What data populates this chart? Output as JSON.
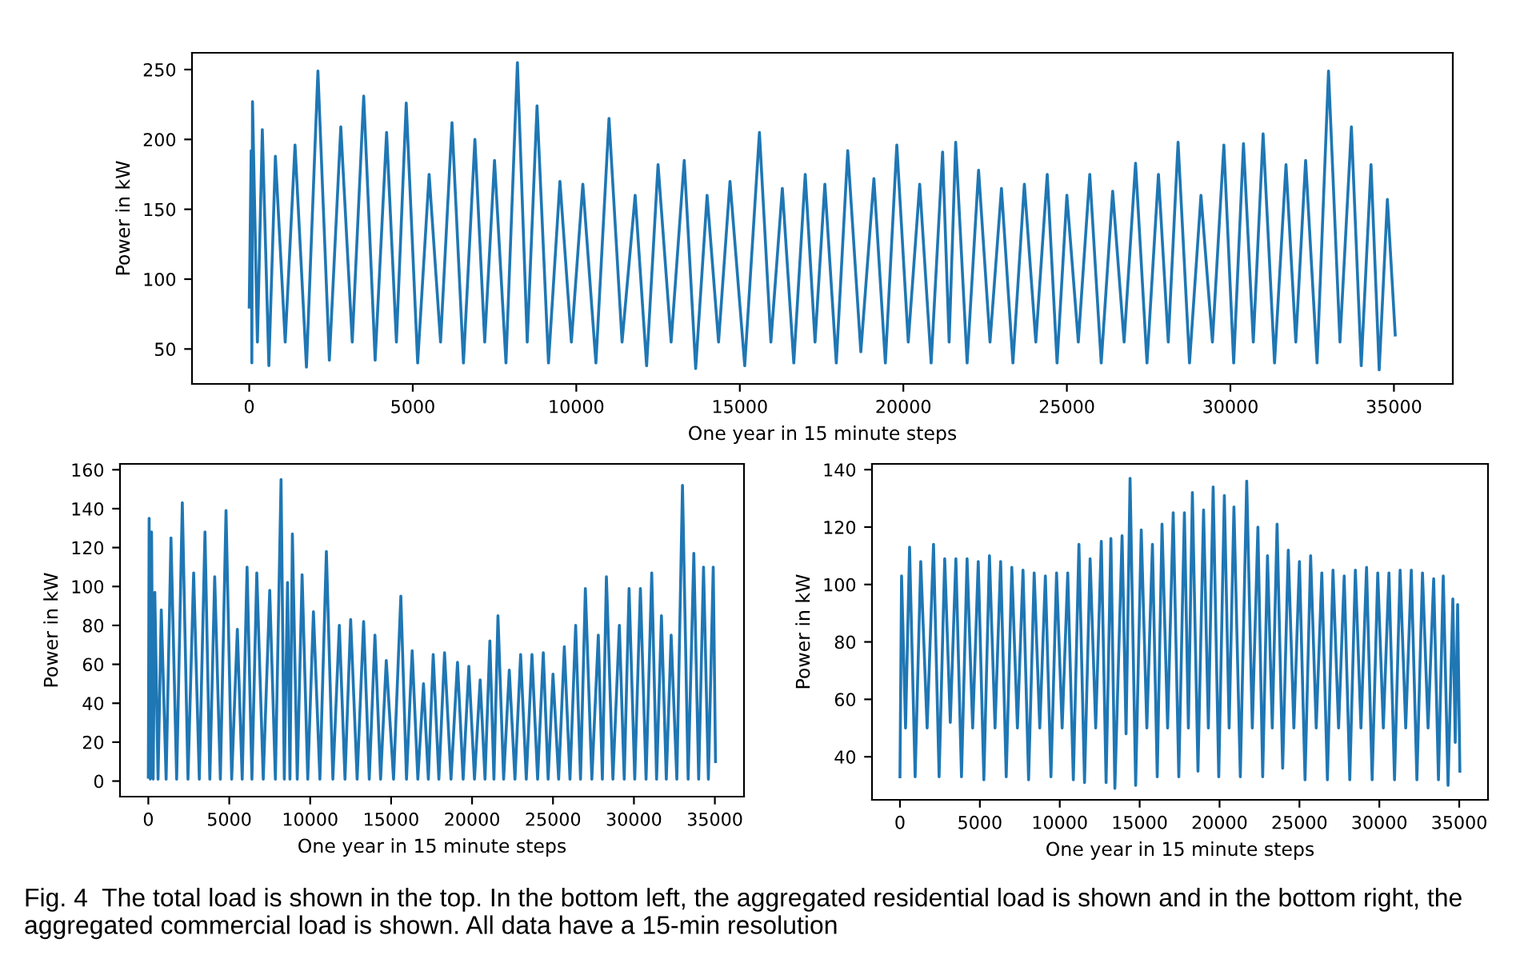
{
  "chart_data": [
    {
      "type": "line",
      "xlabel": "One year in 15 minute steps",
      "ylabel": "Power in kW",
      "xlim": [
        -1750,
        36800
      ],
      "ylim": [
        25,
        262
      ],
      "xticks": [
        0,
        5000,
        10000,
        15000,
        20000,
        25000,
        30000,
        35000
      ],
      "yticks": [
        50,
        100,
        150,
        200,
        250
      ],
      "grid": false,
      "legend": false,
      "series": [
        {
          "color": "#1f77b4",
          "x": [
            0,
            60,
            80,
            100,
            250,
            400,
            600,
            800,
            1100,
            1400,
            1750,
            2100,
            2450,
            2800,
            3150,
            3500,
            3850,
            4200,
            4500,
            4800,
            5150,
            5500,
            5850,
            6200,
            6550,
            6900,
            7200,
            7500,
            7850,
            8200,
            8500,
            8800,
            9150,
            9500,
            9850,
            10200,
            10600,
            11000,
            11400,
            11800,
            12150,
            12500,
            12900,
            13300,
            13650,
            14000,
            14350,
            14700,
            15150,
            15600,
            15950,
            16300,
            16650,
            17000,
            17300,
            17600,
            17950,
            18300,
            18700,
            19100,
            19450,
            19800,
            20150,
            20500,
            20850,
            21200,
            21400,
            21600,
            21950,
            22300,
            22650,
            23000,
            23350,
            23700,
            24050,
            24400,
            24700,
            25000,
            25350,
            25700,
            26050,
            26400,
            26750,
            27100,
            27450,
            27800,
            28100,
            28400,
            28750,
            29100,
            29450,
            29800,
            30100,
            30400,
            30700,
            31000,
            31350,
            31700,
            32000,
            32300,
            32650,
            33000,
            33350,
            33700,
            34000,
            34300,
            34550,
            34800,
            35040
          ],
          "values": [
            80,
            192,
            40,
            227,
            55,
            207,
            38,
            188,
            55,
            196,
            37,
            249,
            42,
            209,
            55,
            231,
            42,
            205,
            55,
            226,
            40,
            175,
            55,
            212,
            40,
            200,
            55,
            185,
            40,
            255,
            55,
            224,
            40,
            170,
            55,
            168,
            40,
            215,
            55,
            160,
            38,
            182,
            55,
            185,
            36,
            160,
            55,
            170,
            38,
            205,
            55,
            165,
            40,
            175,
            55,
            168,
            40,
            192,
            48,
            172,
            40,
            196,
            55,
            168,
            40,
            191,
            55,
            198,
            40,
            178,
            55,
            165,
            40,
            168,
            55,
            175,
            40,
            160,
            55,
            175,
            40,
            163,
            55,
            183,
            40,
            175,
            55,
            198,
            40,
            160,
            55,
            196,
            40,
            197,
            55,
            204,
            40,
            182,
            55,
            185,
            40,
            249,
            55,
            209,
            38,
            182,
            35,
            157,
            60
          ]
        }
      ]
    },
    {
      "type": "line",
      "xlabel": "One year in 15 minute steps",
      "ylabel": "Power in kW",
      "xlim": [
        -1750,
        36800
      ],
      "ylim": [
        -8,
        163
      ],
      "xticks": [
        0,
        5000,
        10000,
        15000,
        20000,
        25000,
        30000,
        35000
      ],
      "yticks": [
        0,
        20,
        40,
        60,
        80,
        100,
        120,
        140,
        160
      ],
      "grid": false,
      "legend": false,
      "series": [
        {
          "color": "#1f77b4",
          "x": [
            0,
            50,
            120,
            200,
            300,
            400,
            600,
            800,
            1100,
            1400,
            1750,
            2100,
            2450,
            2800,
            3150,
            3500,
            3800,
            4100,
            4450,
            4800,
            5150,
            5500,
            5800,
            6100,
            6400,
            6700,
            7100,
            7500,
            7850,
            8200,
            8400,
            8600,
            8750,
            8900,
            9200,
            9500,
            9850,
            10200,
            10600,
            11000,
            11400,
            11800,
            12150,
            12500,
            12900,
            13300,
            13650,
            14000,
            14350,
            14700,
            15150,
            15600,
            15950,
            16300,
            16650,
            17000,
            17300,
            17600,
            17950,
            18300,
            18700,
            19100,
            19450,
            19800,
            20150,
            20500,
            20800,
            21100,
            21350,
            21600,
            21950,
            22300,
            22650,
            23000,
            23350,
            23700,
            24050,
            24400,
            24700,
            25000,
            25350,
            25700,
            26050,
            26400,
            26700,
            27000,
            27400,
            27800,
            28050,
            28300,
            28700,
            29100,
            29400,
            29700,
            30050,
            30400,
            30750,
            31100,
            31400,
            31700,
            32000,
            32300,
            32650,
            33000,
            33350,
            33700,
            34000,
            34300,
            34600,
            34900,
            35040
          ],
          "values": [
            2,
            135,
            1,
            128,
            1,
            97,
            1,
            88,
            1,
            125,
            1,
            143,
            1,
            107,
            1,
            128,
            1,
            105,
            1,
            139,
            1,
            78,
            1,
            110,
            1,
            107,
            1,
            98,
            1,
            155,
            1,
            102,
            1,
            127,
            1,
            106,
            1,
            87,
            1,
            118,
            1,
            80,
            1,
            83,
            1,
            82,
            1,
            75,
            1,
            62,
            1,
            95,
            1,
            67,
            1,
            50,
            1,
            65,
            1,
            66,
            1,
            61,
            1,
            59,
            1,
            52,
            1,
            72,
            1,
            85,
            1,
            57,
            1,
            65,
            1,
            65,
            1,
            66,
            1,
            55,
            1,
            69,
            1,
            80,
            1,
            99,
            1,
            75,
            1,
            105,
            1,
            80,
            1,
            99,
            1,
            99,
            1,
            107,
            1,
            85,
            1,
            75,
            1,
            152,
            1,
            117,
            1,
            110,
            1,
            110,
            10
          ]
        }
      ]
    },
    {
      "type": "line",
      "xlabel": "One year in 15 minute steps",
      "ylabel": "Power in kW",
      "xlim": [
        -1750,
        36800
      ],
      "ylim": [
        25,
        142
      ],
      "xticks": [
        0,
        5000,
        10000,
        15000,
        20000,
        25000,
        30000,
        35000
      ],
      "yticks": [
        40,
        60,
        80,
        100,
        120,
        140
      ],
      "grid": false,
      "legend": false,
      "annotations": [
        "Fig. 4  The total load is shown in the top. In the bottom left, the aggregated residential load is shown and in the bottom right, the aggregated commercial load is shown. All data have a 15-min resolution"
      ],
      "series": [
        {
          "color": "#1f77b4",
          "x": [
            0,
            100,
            350,
            600,
            950,
            1300,
            1700,
            2100,
            2450,
            2800,
            3150,
            3500,
            3850,
            4200,
            4550,
            4900,
            5250,
            5600,
            5950,
            6300,
            6650,
            7000,
            7350,
            7700,
            8050,
            8400,
            8750,
            9100,
            9450,
            9800,
            10150,
            10500,
            10850,
            11200,
            11550,
            11900,
            12250,
            12600,
            12900,
            13200,
            13450,
            13900,
            14150,
            14400,
            14750,
            15100,
            15450,
            15800,
            16100,
            16400,
            16750,
            17100,
            17450,
            17800,
            18050,
            18300,
            18650,
            19000,
            19300,
            19600,
            19950,
            20300,
            20600,
            20900,
            21300,
            21700,
            22050,
            22400,
            22700,
            23000,
            23300,
            23600,
            23950,
            24300,
            24650,
            25000,
            25350,
            25700,
            26050,
            26400,
            26750,
            27100,
            27450,
            27800,
            28150,
            28500,
            28850,
            29200,
            29550,
            29900,
            30250,
            30600,
            30950,
            31300,
            31650,
            32000,
            32350,
            32700,
            33050,
            33400,
            33700,
            34000,
            34300,
            34600,
            34750,
            34900,
            35040
          ],
          "values": [
            33,
            103,
            50,
            113,
            33,
            108,
            50,
            114,
            33,
            109,
            52,
            109,
            33,
            109,
            50,
            108,
            32,
            110,
            50,
            108,
            33,
            106,
            50,
            105,
            32,
            104,
            50,
            103,
            33,
            104,
            50,
            104,
            32,
            114,
            31,
            109,
            50,
            115,
            31,
            116,
            29,
            117,
            48,
            137,
            30,
            119,
            50,
            114,
            33,
            121,
            50,
            125,
            33,
            125,
            50,
            132,
            35,
            126,
            50,
            134,
            33,
            131,
            50,
            127,
            33,
            136,
            50,
            120,
            33,
            110,
            50,
            121,
            36,
            112,
            50,
            108,
            32,
            110,
            50,
            104,
            32,
            105,
            50,
            103,
            32,
            105,
            50,
            106,
            32,
            104,
            50,
            104,
            32,
            105,
            50,
            105,
            32,
            104,
            50,
            102,
            32,
            103,
            30,
            95,
            45,
            93,
            35
          ]
        }
      ]
    }
  ]
}
